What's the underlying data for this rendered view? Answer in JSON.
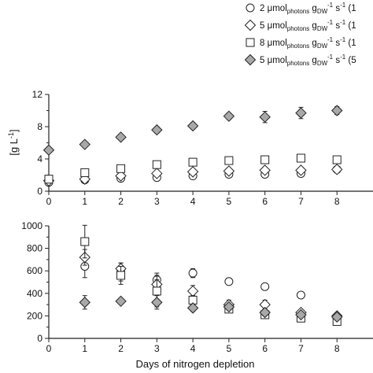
{
  "chart_data": [
    {
      "type": "scatter",
      "panel": "top",
      "ylabel_prefix": "[g L",
      "ylabel_exp": "-1",
      "ylabel_suffix": "]",
      "xlim": [
        0,
        9
      ],
      "ylim": [
        0,
        12
      ],
      "x_ticks": [
        "0",
        "1",
        "2",
        "3",
        "4",
        "5",
        "6",
        "7",
        "8"
      ],
      "y_ticks": [
        "0",
        "4",
        "8",
        "12"
      ],
      "grid": false,
      "series": [
        {
          "marker": "circle",
          "fill": "#ffffff",
          "x": [
            0,
            1,
            2,
            3,
            4,
            5,
            6,
            7,
            8
          ],
          "y": [
            1.1,
            1.4,
            1.6,
            1.7,
            1.9,
            2.1,
            2.1,
            2.2,
            2.7
          ],
          "err": [
            0.1,
            0.1,
            0.1,
            0.1,
            0.1,
            0.1,
            0.1,
            0.1,
            0.1
          ]
        },
        {
          "marker": "diamond",
          "fill": "#ffffff",
          "x": [
            0,
            1,
            2,
            3,
            4,
            5,
            6,
            7,
            8
          ],
          "y": [
            1.3,
            1.5,
            1.9,
            2.2,
            2.4,
            2.5,
            2.6,
            2.6,
            2.7
          ],
          "err": [
            0.1,
            0.1,
            0.1,
            0.2,
            0.2,
            0.2,
            0.1,
            0.1,
            0.1
          ]
        },
        {
          "marker": "square",
          "fill": "#ffffff",
          "x": [
            0,
            1,
            2,
            3,
            4,
            5,
            6,
            7,
            8
          ],
          "y": [
            1.5,
            2.3,
            2.8,
            3.3,
            3.6,
            3.8,
            3.9,
            4.1,
            3.9
          ],
          "err": [
            0.1,
            0.1,
            0.1,
            0.1,
            0.1,
            0.1,
            0.1,
            0.1,
            0.1
          ]
        },
        {
          "marker": "diamond",
          "fill": "#a8a8a8",
          "x": [
            0,
            1,
            2,
            3,
            4,
            5,
            6,
            7,
            8
          ],
          "y": [
            5.1,
            5.8,
            6.7,
            7.6,
            8.1,
            9.3,
            9.2,
            9.7,
            10.0
          ],
          "err": [
            0.1,
            0.1,
            0.1,
            0.4,
            0.4,
            0.4,
            0.7,
            0.7,
            0.5
          ]
        }
      ]
    },
    {
      "type": "scatter",
      "panel": "bottom",
      "xlabel": "Days of nitrogen depletion",
      "xlim": [
        0,
        9
      ],
      "ylim": [
        0,
        1000
      ],
      "x_ticks": [
        "0",
        "1",
        "2",
        "3",
        "4",
        "5",
        "6",
        "7",
        "8"
      ],
      "y_ticks": [
        "0",
        "200",
        "400",
        "600",
        "800",
        "1000"
      ],
      "grid": false,
      "series": [
        {
          "marker": "circle",
          "fill": "#ffffff",
          "x": [
            1,
            2,
            3,
            4,
            5,
            6,
            7
          ],
          "y": [
            640,
            590,
            520,
            580,
            505,
            460,
            385
          ],
          "err": [
            100,
            80,
            60,
            40,
            30,
            10,
            10
          ]
        },
        {
          "marker": "diamond",
          "fill": "#ffffff",
          "x": [
            1,
            2,
            3,
            4,
            5,
            6,
            7,
            8
          ],
          "y": [
            720,
            620,
            480,
            420,
            300,
            300,
            230,
            200
          ],
          "err": [
            70,
            50,
            40,
            50,
            40,
            40,
            20,
            20
          ]
        },
        {
          "marker": "square",
          "fill": "#ffffff",
          "x": [
            1,
            2,
            3,
            4,
            5,
            6,
            7,
            8
          ],
          "y": [
            860,
            560,
            420,
            340,
            260,
            210,
            180,
            150
          ],
          "err": [
            145,
            80,
            140,
            40,
            20,
            30,
            20,
            15
          ]
        },
        {
          "marker": "diamond",
          "fill": "#a8a8a8",
          "x": [
            1,
            2,
            3,
            4,
            5,
            6,
            7,
            8
          ],
          "y": [
            320,
            330,
            320,
            270,
            280,
            230,
            210,
            190
          ],
          "err": [
            60,
            10,
            60,
            30,
            10,
            30,
            20,
            20
          ]
        }
      ]
    }
  ],
  "legend": {
    "entries": [
      {
        "value": "2 μmol",
        "sub": "photons",
        "unit": " g",
        "unit_sub": "DW",
        "sup1": "-1",
        "s": " s",
        "sup2": "-1",
        "tail": " (1"
      },
      {
        "value": "5 μmol",
        "sub": "photons",
        "unit": " g",
        "unit_sub": "DW",
        "sup1": "-1",
        "s": " s",
        "sup2": "-1",
        "tail": " (1"
      },
      {
        "value": "8 μmol",
        "sub": "photons",
        "unit": " g",
        "unit_sub": "DW",
        "sup1": "-1",
        "s": " s",
        "sup2": "-1",
        "tail": " (1"
      },
      {
        "value": "5 μmol",
        "sub": "photons",
        "unit": " g",
        "unit_sub": "DW",
        "sup1": "-1",
        "s": " s",
        "sup2": "-1",
        "tail": " (5"
      }
    ]
  }
}
